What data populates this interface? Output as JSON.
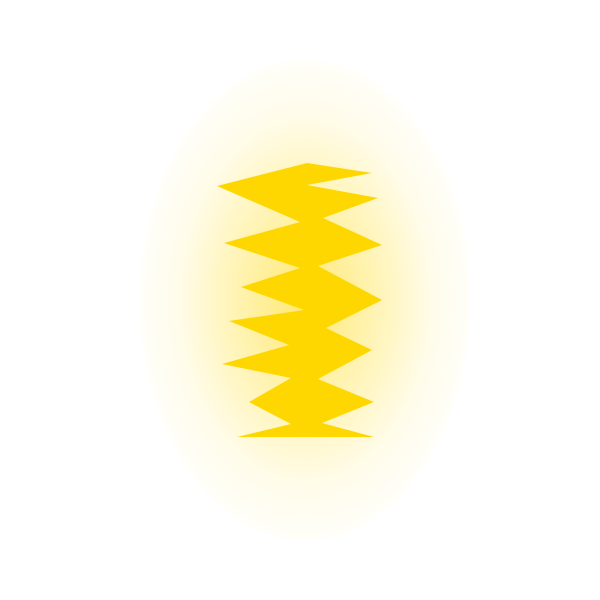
{
  "colors": {
    "shape_fill": "#FFD700",
    "glow": "#FFE24A",
    "background": "#FFFFFF"
  },
  "icon": "zigzag-spring-icon"
}
